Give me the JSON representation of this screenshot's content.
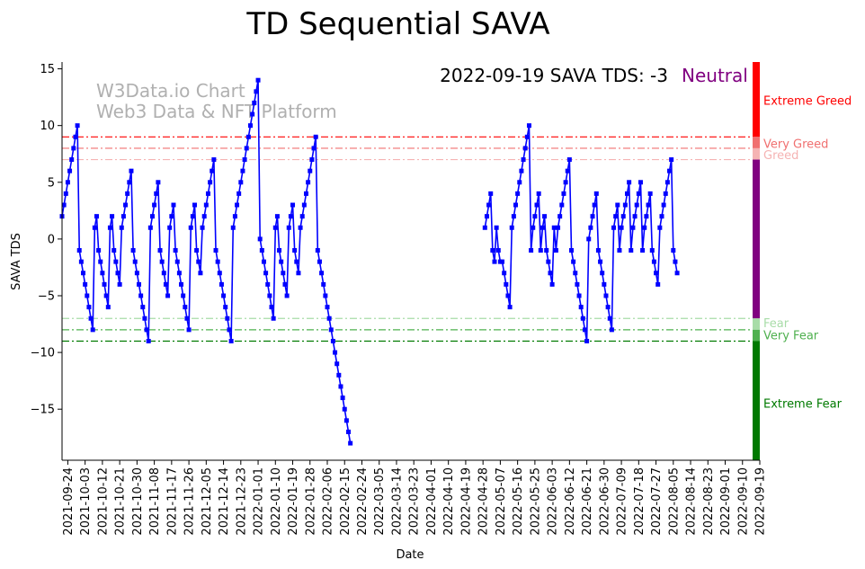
{
  "chart_data": {
    "type": "line",
    "title": "TD Sequential SAVA",
    "xlabel": "Date",
    "ylabel": "SAVA TDS",
    "ylim": [
      -19.5,
      15.6
    ],
    "yticks": [
      -15,
      -10,
      -5,
      0,
      5,
      10,
      15
    ],
    "x_start": "2021-09-21",
    "x_end": "2022-09-19",
    "xtick_labels": [
      "2021-09-24",
      "2021-10-03",
      "2021-10-12",
      "2021-10-21",
      "2021-10-30",
      "2021-11-08",
      "2021-11-17",
      "2021-11-26",
      "2021-12-05",
      "2021-12-14",
      "2021-12-23",
      "2022-01-01",
      "2022-01-10",
      "2022-01-19",
      "2022-01-28",
      "2022-02-06",
      "2022-02-15",
      "2022-02-24",
      "2022-03-05",
      "2022-03-14",
      "2022-03-23",
      "2022-04-01",
      "2022-04-10",
      "2022-04-19",
      "2022-04-28",
      "2022-05-07",
      "2022-05-16",
      "2022-05-25",
      "2022-06-03",
      "2022-06-12",
      "2022-06-21",
      "2022-06-30",
      "2022-07-09",
      "2022-07-18",
      "2022-07-27",
      "2022-08-05",
      "2022-08-14",
      "2022-08-23",
      "2022-09-01",
      "2022-09-10",
      "2022-09-19"
    ],
    "annotation": {
      "date_text": "2022-09-19 SAVA TDS: -3",
      "status_text": "Neutral",
      "status_color": "#800080"
    },
    "watermark": [
      "W3Data.io Chart",
      "Web3 Data & NFT Platform"
    ],
    "threshold_lines": [
      {
        "value": 9,
        "color": "#ff0000",
        "label": "Extreme Greed"
      },
      {
        "value": 8,
        "color": "#f07070",
        "label": "Very Greed"
      },
      {
        "value": 7,
        "color": "#f5b3b3",
        "label": "Greed"
      },
      {
        "value": -7,
        "color": "#a8dca8",
        "label": "Fear"
      },
      {
        "value": -8,
        "color": "#4fb04f",
        "label": "Very Fear"
      },
      {
        "value": -9,
        "color": "#007a00",
        "label": "Extreme Fear"
      }
    ],
    "zone_bar": [
      {
        "from": 9,
        "to": 15.6,
        "color": "#ff0000"
      },
      {
        "from": 8,
        "to": 9,
        "color": "#f07070"
      },
      {
        "from": 7,
        "to": 8,
        "color": "#f5b3b3"
      },
      {
        "from": -7,
        "to": 7,
        "color": "#800080"
      },
      {
        "from": -8,
        "to": -7,
        "color": "#a8dca8"
      },
      {
        "from": -9,
        "to": -8,
        "color": "#4fb04f"
      },
      {
        "from": -19.5,
        "to": -9,
        "color": "#007a00"
      }
    ],
    "side_labels": [
      {
        "text": "Extreme Greed",
        "y": 12.2,
        "color": "#ff0000"
      },
      {
        "text": "Very Greed",
        "y": 8.4,
        "color": "#f07070"
      },
      {
        "text": "Greed",
        "y": 7.4,
        "color": "#f5b3b3"
      },
      {
        "text": "Fear",
        "y": -7.4,
        "color": "#a8dca8"
      },
      {
        "text": "Very Fear",
        "y": -8.5,
        "color": "#4fb04f"
      },
      {
        "text": "Extreme Fear",
        "y": -14.5,
        "color": "#007a00"
      }
    ],
    "series": [
      {
        "color": "#0000ff",
        "segments": [
          {
            "x_start": "2021-09-21",
            "values": [
              2,
              3,
              4,
              5,
              6,
              7,
              8,
              9,
              10,
              -1,
              -2,
              -3,
              -4,
              -5,
              -6,
              -7,
              -8,
              1,
              2,
              -1,
              -2,
              -3,
              -4,
              -5,
              -6,
              1,
              2,
              -1,
              -2,
              -3,
              -4,
              1,
              2,
              3,
              4,
              5,
              6,
              -1,
              -2,
              -3,
              -4,
              -5,
              -6,
              -7,
              -8,
              -9,
              1,
              2,
              3,
              4,
              5,
              -1,
              -2,
              -3,
              -4,
              -5,
              1,
              2,
              3,
              -1,
              -2,
              -3,
              -4,
              -5,
              -6,
              -7,
              -8,
              1,
              2,
              3,
              -1,
              -2,
              -3,
              1,
              2,
              3,
              4,
              5,
              6,
              7,
              -1,
              -2,
              -3,
              -4,
              -5,
              -6,
              -7,
              -8,
              -9,
              1,
              2,
              3,
              4,
              5,
              6,
              7,
              8,
              9,
              10,
              11,
              12,
              13,
              14,
              0,
              -1,
              -2,
              -3,
              -4,
              -5,
              -6,
              -7,
              1,
              2,
              -1,
              -2,
              -3,
              -4,
              -5,
              1,
              2,
              3,
              -1,
              -2,
              -3,
              1,
              2,
              3,
              4,
              5,
              6,
              7,
              8,
              9,
              -1,
              -2,
              -3,
              -4,
              -5,
              -6,
              -7,
              -8,
              -9,
              -10,
              -11,
              -12,
              -13,
              -14,
              -15,
              -16,
              -17,
              -18
            ]
          },
          {
            "x_start": "2022-04-29",
            "values": [
              1,
              2,
              3,
              4,
              -1,
              -2,
              1,
              -1,
              -2,
              -2,
              -3,
              -4,
              -5,
              -6,
              1,
              2,
              3,
              4,
              5,
              6,
              7,
              8,
              9,
              10,
              -1,
              1,
              2,
              3,
              4,
              -1,
              1,
              2,
              -1,
              -2,
              -3,
              -4,
              1,
              -1,
              1,
              2,
              3,
              4,
              5,
              6,
              7,
              -1,
              -2,
              -3,
              -4,
              -5,
              -6,
              -7,
              -8,
              -9,
              0,
              1,
              2,
              3,
              4,
              -1,
              -2,
              -3,
              -4,
              -5,
              -6,
              -7,
              -8,
              1,
              2,
              3,
              -1,
              1,
              2,
              3,
              4,
              5,
              -1,
              1,
              2,
              3,
              4,
              5,
              -1,
              1,
              2,
              3,
              4,
              -1,
              -2,
              -3,
              -4,
              1,
              2,
              3,
              4,
              5,
              6,
              7,
              -1,
              -2,
              -3
            ]
          }
        ]
      }
    ]
  }
}
